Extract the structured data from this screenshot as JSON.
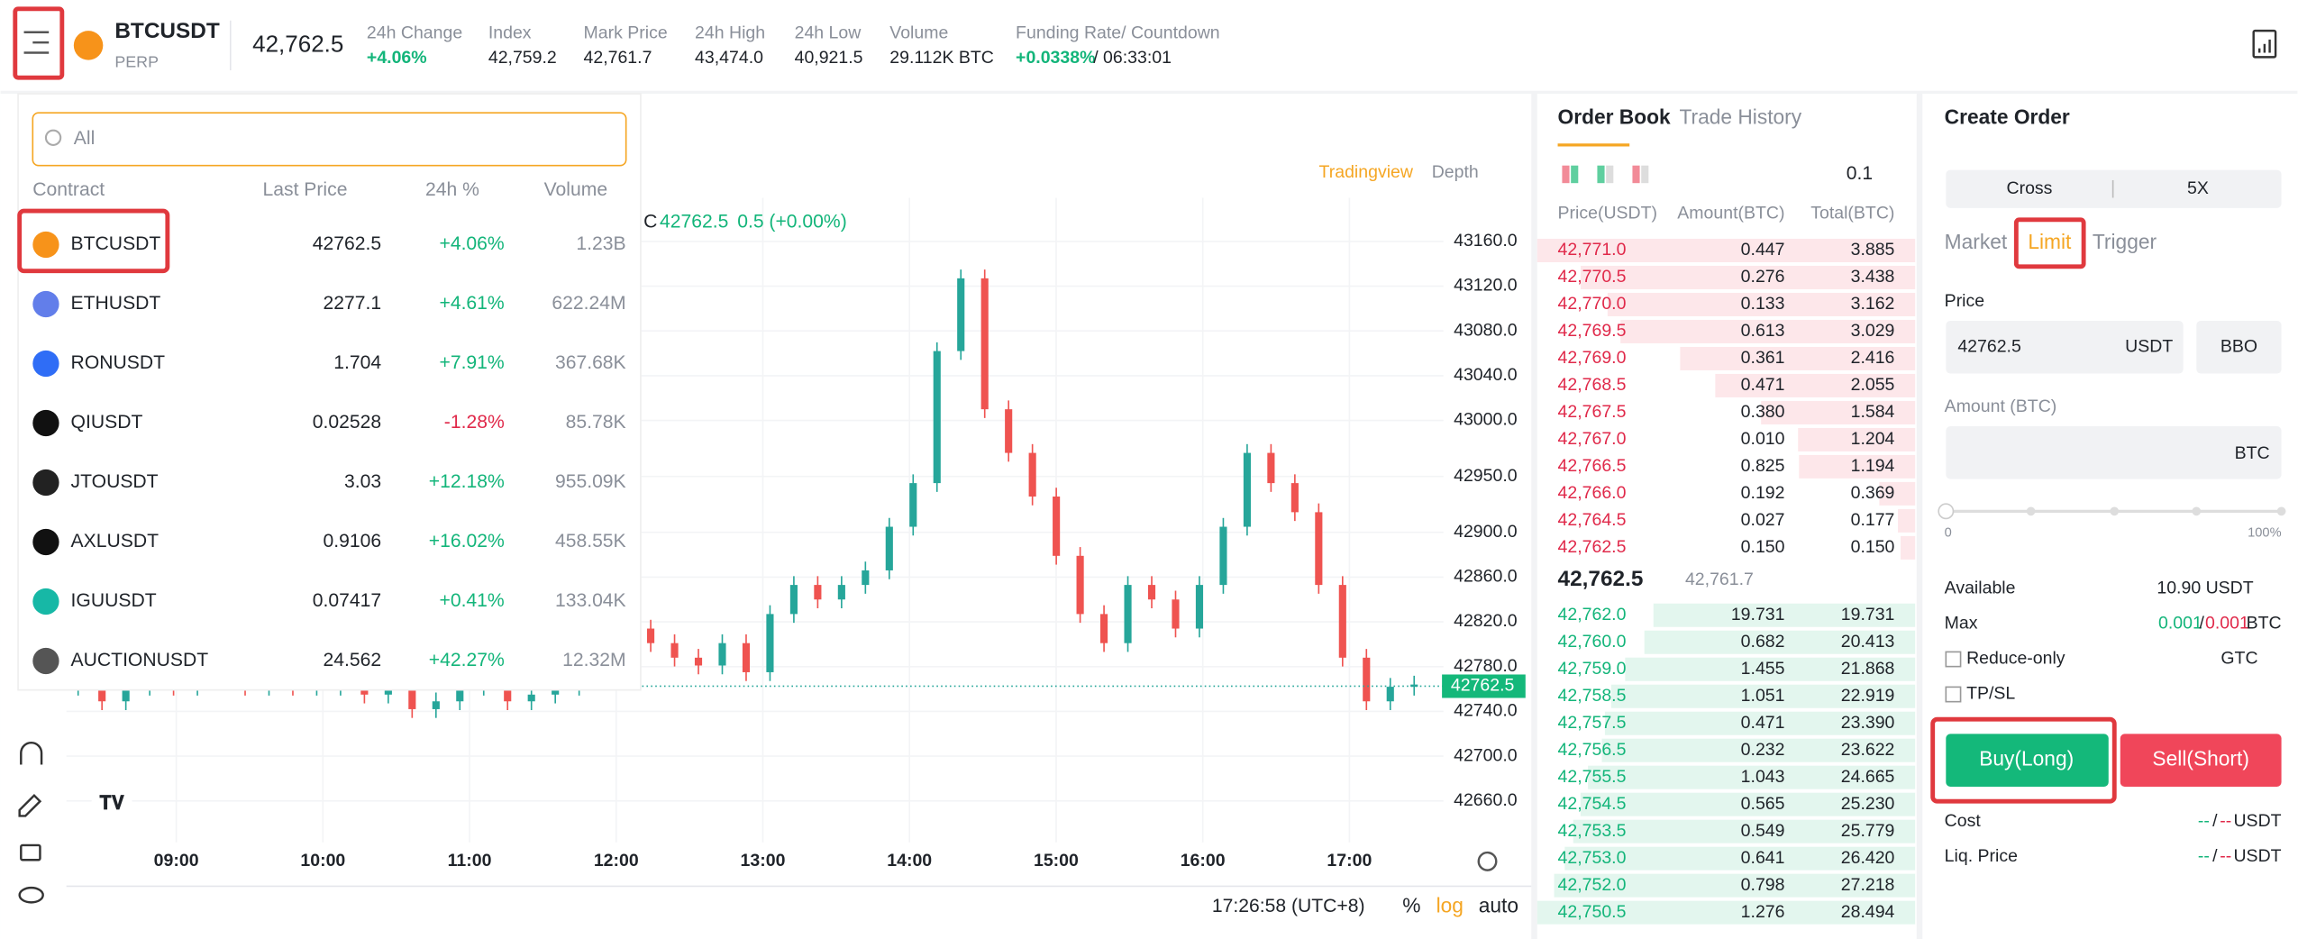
{
  "header": {
    "symbol": "BTCUSDT",
    "contract_type": "PERP",
    "last_price": "42,762.5",
    "stats": [
      {
        "label": "24h Change",
        "value": "+4.06%"
      },
      {
        "label": "Index",
        "value": "42,759.2"
      },
      {
        "label": "Mark Price",
        "value": "42,761.7"
      },
      {
        "label": "24h High",
        "value": "43,474.0"
      },
      {
        "label": "24h Low",
        "value": "40,921.5"
      },
      {
        "label": "Volume",
        "value": "29.112K BTC"
      }
    ],
    "funding": {
      "label": "Funding Rate/ Countdown",
      "rate": "+0.0338%",
      "countdown": "/ 06:33:01"
    }
  },
  "market_list": {
    "search_placeholder": "All",
    "columns": [
      "Contract",
      "Last Price",
      "24h %",
      "Volume"
    ],
    "rows": [
      [
        "BTCUSDT",
        "42762.5",
        "+4.06%",
        "1.23B"
      ],
      [
        "ETHUSDT",
        "2277.1",
        "+4.61%",
        "622.24M"
      ],
      [
        "RONUSDT",
        "1.704",
        "+7.91%",
        "367.68K"
      ],
      [
        "QIUSDT",
        "0.02528",
        "-1.28%",
        "85.78K"
      ],
      [
        "JTOUSDT",
        "3.03",
        "+12.18%",
        "955.09K"
      ],
      [
        "AXLUSDT",
        "0.9106",
        "+16.02%",
        "458.55K"
      ],
      [
        "IGUUSDT",
        "0.07417",
        "+0.41%",
        "133.04K"
      ],
      [
        "AUCTIONUSDT",
        "24.562",
        "+42.27%",
        "12.32M"
      ]
    ]
  },
  "chart": {
    "type": "candlestick",
    "toolbar": [
      "Tradingview",
      "Depth"
    ],
    "legend": {
      "prefix": "C",
      "close": "42762.5",
      "change": "0.5 (+0.00%)"
    },
    "up_color": "#26a69a",
    "down_color": "#ef5350",
    "closes": [
      42762,
      42749,
      42762,
      42768,
      42762,
      42775,
      42768,
      42762,
      42768,
      42762,
      42762,
      42764,
      42755,
      42762,
      42742,
      42749,
      42762,
      42768,
      42749,
      42755,
      42762,
      42775,
      42788,
      42814,
      42801,
      42788,
      42781,
      42801,
      42775,
      42827,
      42853,
      42840,
      42853,
      42866,
      42905,
      42944,
      43062,
      43127,
      43010,
      42971,
      42932,
      42879,
      42827,
      42801,
      42853,
      42840,
      42814,
      42853,
      42905,
      42971,
      42944,
      42918,
      42853,
      42788,
      42749,
      42762,
      42764
    ],
    "ylim": [
      42623,
      43199
    ],
    "yticks": [
      {
        "value": 43160,
        "label": "43160.0"
      },
      {
        "value": 43120,
        "label": "43120.0"
      },
      {
        "value": 43080,
        "label": "43080.0"
      },
      {
        "value": 43040,
        "label": "43040.0"
      },
      {
        "value": 43000,
        "label": "43000.0"
      },
      {
        "value": 42950,
        "label": "42950.0"
      },
      {
        "value": 42900,
        "label": "42900.0"
      },
      {
        "value": 42860,
        "label": "42860.0"
      },
      {
        "value": 42820,
        "label": "42820.0"
      },
      {
        "value": 42780,
        "label": "42780.0"
      },
      {
        "value": 42740,
        "label": "42740.0"
      },
      {
        "value": 42700,
        "label": "42700.0"
      },
      {
        "value": 42660,
        "label": "42660.0"
      }
    ],
    "last_price": {
      "value": 42762.5,
      "label": "42762.5"
    },
    "xticks": [
      "09:00",
      "10:00",
      "11:00",
      "12:00",
      "13:00",
      "14:00",
      "15:00",
      "16:00",
      "17:00"
    ],
    "footer": {
      "time": "17:26:58 (UTC+8)",
      "percent": "%",
      "log": "log",
      "auto": "auto"
    }
  },
  "order_book": {
    "tabs": [
      "Order Book",
      "Trade History"
    ],
    "step": "0.1",
    "columns": [
      "Price(USDT)",
      "Amount(BTC)",
      "Total(BTC)"
    ],
    "asks": [
      [
        "42,771.0",
        "0.447",
        3.885
      ],
      [
        "42,770.5",
        "0.276",
        3.438
      ],
      [
        "42,770.0",
        "0.133",
        3.162
      ],
      [
        "42,769.5",
        "0.613",
        3.029
      ],
      [
        "42,769.0",
        "0.361",
        2.416
      ],
      [
        "42,768.5",
        "0.471",
        2.055
      ],
      [
        "42,767.5",
        "0.380",
        1.584
      ],
      [
        "42,767.0",
        "0.010",
        1.204
      ],
      [
        "42,766.5",
        "0.825",
        1.194
      ],
      [
        "42,766.0",
        "0.192",
        0.369
      ],
      [
        "42,764.5",
        "0.027",
        0.177
      ],
      [
        "42,762.5",
        "0.150",
        0.15
      ]
    ],
    "ask_total_labels": [
      "3.885",
      "3.438",
      "3.162",
      "3.029",
      "2.416",
      "2.055",
      "1.584",
      "1.204",
      "1.194",
      "0.369",
      "0.177",
      "0.150"
    ],
    "mid_price": "42,762.5",
    "mark_price": "42,761.7",
    "bids": [
      [
        "42,762.0",
        "19.731",
        19.731
      ],
      [
        "42,760.0",
        "0.682",
        20.413
      ],
      [
        "42,759.0",
        "1.455",
        21.868
      ],
      [
        "42,758.5",
        "1.051",
        22.919
      ],
      [
        "42,757.5",
        "0.471",
        23.39
      ],
      [
        "42,756.5",
        "0.232",
        23.622
      ],
      [
        "42,755.5",
        "1.043",
        24.665
      ],
      [
        "42,754.5",
        "0.565",
        25.23
      ],
      [
        "42,753.5",
        "0.549",
        25.779
      ],
      [
        "42,753.0",
        "0.641",
        26.42
      ],
      [
        "42,752.0",
        "0.798",
        27.218
      ],
      [
        "42,750.5",
        "1.276",
        28.494
      ]
    ],
    "bid_total_labels": [
      "19.731",
      "20.413",
      "21.868",
      "22.919",
      "23.390",
      "23.622",
      "24.665",
      "25.230",
      "25.779",
      "26.420",
      "27.218",
      "28.494"
    ]
  },
  "order_form": {
    "title": "Create Order",
    "margin_mode": "Cross",
    "leverage": "5X",
    "tabs": [
      "Market",
      "Limit",
      "Trigger"
    ],
    "price_label": "Price",
    "price_value": "42762.5",
    "price_unit": "USDT",
    "bbo": "BBO",
    "amount_label": "Amount (BTC)",
    "amount_unit": "BTC",
    "slider_min": "0",
    "slider_max": "100%",
    "available_label": "Available",
    "available_value": "10.90 USDT",
    "max_label": "Max",
    "max_long": "0.001",
    "max_sep": "/",
    "max_short": "0.001",
    "max_unit": "BTC",
    "reduce_only": "Reduce-only",
    "time_in_force": "GTC",
    "tpsl": "TP/SL",
    "buy": "Buy(Long)",
    "sell": "Sell(Short)",
    "cost_label": "Cost",
    "liq_label": "Liq. Price",
    "placeholder_long": "--",
    "placeholder_sep": "/",
    "placeholder_short": "--",
    "unit": "USDT"
  }
}
